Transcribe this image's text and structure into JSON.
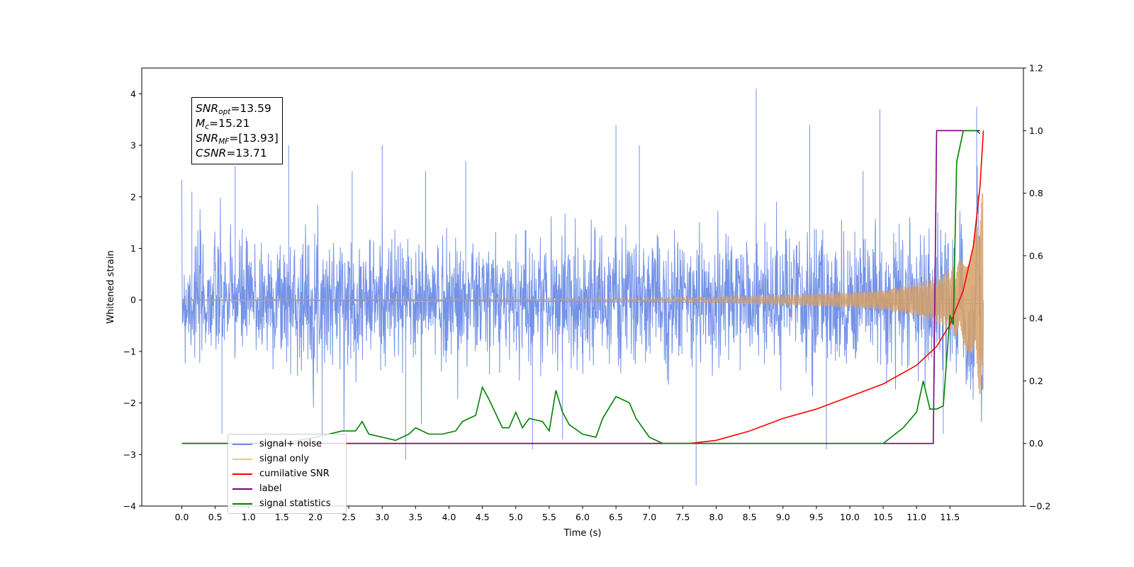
{
  "chart_data": {
    "type": "line",
    "title": "",
    "xlabel": "Time (s)",
    "ylabel": "Whitened strain",
    "xlim": [
      -0.6,
      12.6
    ],
    "ylim": [
      -4,
      4.5
    ],
    "y2lim": [
      -0.2,
      1.2
    ],
    "x_ticks": [
      "0.0",
      "0.5",
      "1.0",
      "1.5",
      "2.0",
      "2.5",
      "3.0",
      "3.5",
      "4.0",
      "4.5",
      "5.0",
      "5.5",
      "6.0",
      "6.5",
      "7.0",
      "7.5",
      "8.0",
      "8.5",
      "9.0",
      "9.5",
      "10.0",
      "10.5",
      "11.0",
      "11.5"
    ],
    "y_ticks": [
      "−4",
      "−3",
      "−2",
      "−1",
      "0",
      "1",
      "2",
      "3",
      "4"
    ],
    "y2_ticks": [
      "−0.2",
      "0.0",
      "0.2",
      "0.4",
      "0.6",
      "0.8",
      "1.0",
      "1.2"
    ],
    "legend_position": "lower-left",
    "annotations": {
      "snr_opt": "=13.59",
      "mc": "=15.21",
      "snr_mf": "=[13.93]",
      "csnr": "=13.71"
    },
    "series": [
      {
        "name": "signal+ noise",
        "axis": "left",
        "color": "#6d8de6",
        "description_type": "noisy strain",
        "spike_times": [
          0.15,
          0.6,
          0.8,
          1.6,
          2.1,
          2.55,
          3.0,
          3.35,
          3.65,
          4.25,
          5.25,
          5.7,
          6.5,
          6.85,
          7.7,
          8.6,
          9.4,
          9.65,
          10.2,
          10.45,
          11.4,
          11.9
        ],
        "spike_values": [
          2.1,
          -2.6,
          2.6,
          3.0,
          -2.8,
          2.5,
          3.0,
          -3.1,
          2.5,
          2.7,
          -2.9,
          -2.7,
          3.4,
          3.0,
          -3.6,
          4.1,
          3.4,
          -2.9,
          2.5,
          3.7,
          -2.6,
          3.75
        ]
      },
      {
        "name": "signal only",
        "axis": "left",
        "color": "#e6a35c",
        "x": [
          0,
          6,
          8,
          9,
          10,
          10.5,
          11,
          11.3,
          11.5,
          11.7,
          11.85,
          11.95,
          12.0
        ],
        "envelope": [
          0.01,
          0.03,
          0.06,
          0.1,
          0.15,
          0.2,
          0.32,
          0.45,
          0.6,
          0.85,
          1.2,
          1.9,
          2.2
        ]
      },
      {
        "name": "cumilative SNR",
        "axis": "right",
        "color": "#ff0000",
        "x": [
          7.6,
          8.0,
          8.5,
          9.0,
          9.5,
          10.0,
          10.5,
          11.0,
          11.3,
          11.5,
          11.7,
          11.85,
          11.95,
          12.0
        ],
        "y": [
          0.0,
          0.01,
          0.04,
          0.08,
          0.11,
          0.15,
          0.19,
          0.25,
          0.31,
          0.38,
          0.49,
          0.63,
          0.82,
          1.0
        ]
      },
      {
        "name": "label",
        "axis": "right",
        "color": "#800080",
        "x": [
          0,
          11.25,
          11.3,
          11.95
        ],
        "y": [
          0,
          0,
          1,
          1
        ]
      },
      {
        "name": "signal statistics",
        "axis": "right",
        "color": "#008000",
        "x": [
          0,
          1.5,
          2.0,
          2.2,
          2.4,
          2.6,
          2.7,
          2.8,
          3.0,
          3.2,
          3.4,
          3.5,
          3.7,
          3.9,
          4.1,
          4.2,
          4.3,
          4.4,
          4.5,
          4.6,
          4.8,
          4.9,
          5.0,
          5.1,
          5.2,
          5.4,
          5.5,
          5.6,
          5.7,
          5.8,
          6.0,
          6.2,
          6.3,
          6.5,
          6.6,
          6.7,
          6.8,
          7.0,
          7.2,
          7.5,
          8.0,
          8.5,
          9.0,
          9.5,
          10.0,
          10.5,
          10.8,
          11.0,
          11.1,
          11.2,
          11.3,
          11.4,
          11.5,
          11.55,
          11.6,
          11.7,
          11.75,
          11.8,
          11.9,
          11.95
        ],
        "y": [
          0.0,
          0.0,
          0.02,
          0.03,
          0.04,
          0.04,
          0.07,
          0.03,
          0.02,
          0.01,
          0.03,
          0.05,
          0.03,
          0.03,
          0.04,
          0.07,
          0.08,
          0.09,
          0.18,
          0.14,
          0.05,
          0.05,
          0.1,
          0.05,
          0.08,
          0.07,
          0.04,
          0.17,
          0.1,
          0.06,
          0.03,
          0.02,
          0.08,
          0.15,
          0.14,
          0.13,
          0.08,
          0.02,
          0.0,
          0.0,
          0.0,
          0.0,
          0.0,
          0.0,
          0.0,
          0.0,
          0.05,
          0.1,
          0.2,
          0.11,
          0.11,
          0.12,
          0.41,
          0.38,
          0.9,
          1.0,
          1.0,
          1.0,
          1.0,
          0.99
        ]
      }
    ]
  }
}
